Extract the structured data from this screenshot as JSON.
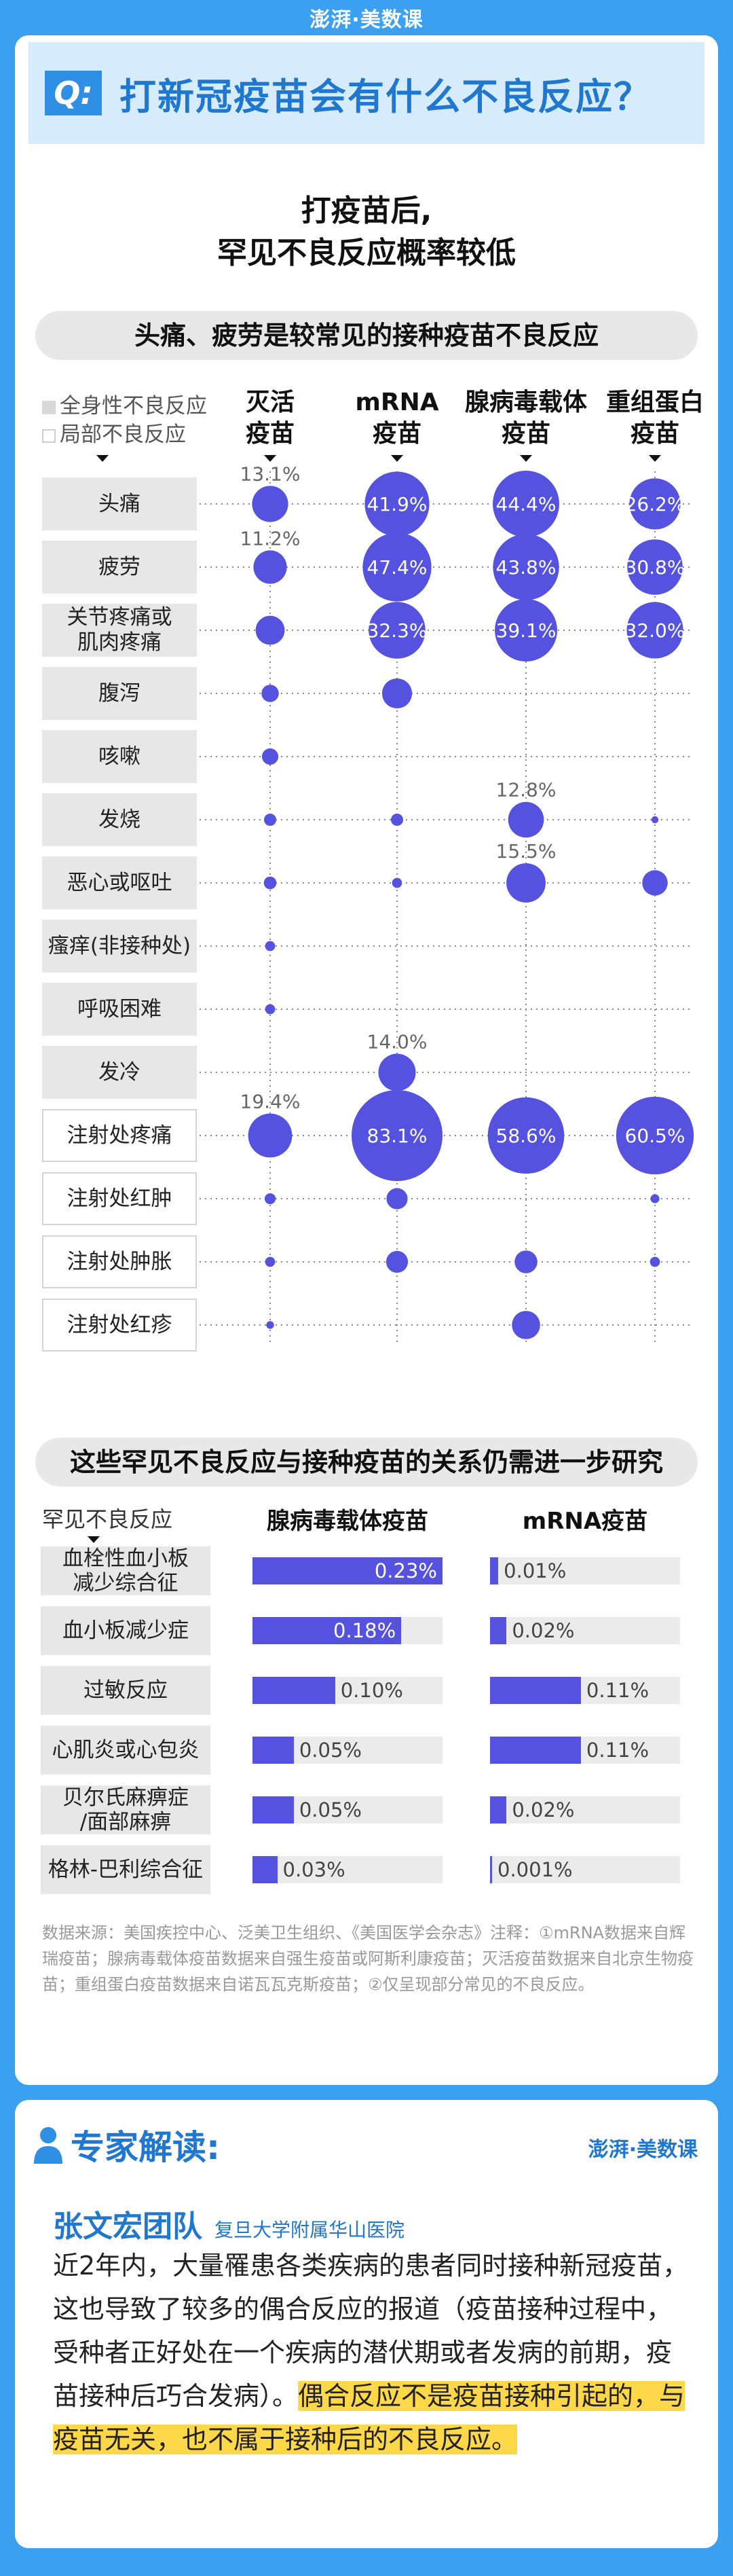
{
  "brand": "澎湃·美数课",
  "q_badge": "Q:",
  "question": "打新冠疫苗会有什么不良反应？",
  "section1_title_line1": "打疫苗后,",
  "section1_title_line2": "罕见不良反应概率较低",
  "banner1": "头痛、疲劳是较常见的接种疫苗不良反应",
  "legend": {
    "systemic": "全身性不良反应",
    "local": "局部不良反应"
  },
  "colors": {
    "bubble": "#5552e0",
    "accent": "#1f77d0",
    "badge": "#2f8fe5",
    "highlight": "#ffd84a",
    "page_bg": "#3ba0f0"
  },
  "chart_data": [
    {
      "type": "scatter",
      "series": [
        {
          "name": "灭活疫苗",
          "label_lines": [
            "灭活",
            "疫苗"
          ]
        },
        {
          "name": "mRNA疫苗",
          "label_lines": [
            "mRNA",
            "疫苗"
          ]
        },
        {
          "name": "腺病毒载体疫苗",
          "label_lines": [
            "腺病毒载体",
            "疫苗"
          ]
        },
        {
          "name": "重组蛋白疫苗",
          "label_lines": [
            "重组蛋白",
            "疫苗"
          ]
        }
      ],
      "categories": [
        {
          "name": "头痛",
          "lines": [
            "头痛"
          ],
          "type": "systemic"
        },
        {
          "name": "疲劳",
          "lines": [
            "疲劳"
          ],
          "type": "systemic"
        },
        {
          "name": "关节疼痛或肌肉疼痛",
          "lines": [
            "关节疼痛或",
            "肌肉疼痛"
          ],
          "type": "systemic"
        },
        {
          "name": "腹泻",
          "lines": [
            "腹泻"
          ],
          "type": "systemic"
        },
        {
          "name": "咳嗽",
          "lines": [
            "咳嗽"
          ],
          "type": "systemic"
        },
        {
          "name": "发烧",
          "lines": [
            "发烧"
          ],
          "type": "systemic"
        },
        {
          "name": "恶心或呕吐",
          "lines": [
            "恶心或呕吐"
          ],
          "type": "systemic"
        },
        {
          "name": "瘙痒(非接种处)",
          "lines": [
            "瘙痒(非接种处)"
          ],
          "type": "systemic"
        },
        {
          "name": "呼吸困难",
          "lines": [
            "呼吸困难"
          ],
          "type": "systemic"
        },
        {
          "name": "发冷",
          "lines": [
            "发冷"
          ],
          "type": "systemic"
        },
        {
          "name": "注射处疼痛",
          "lines": [
            "注射处疼痛"
          ],
          "type": "local"
        },
        {
          "name": "注射处红肿",
          "lines": [
            "注射处红肿"
          ],
          "type": "local"
        },
        {
          "name": "注射处肿胀",
          "lines": [
            "注射处肿胀"
          ],
          "type": "local"
        },
        {
          "name": "注射处红疹",
          "lines": [
            "注射处红疹"
          ],
          "type": "local"
        }
      ],
      "values": [
        [
          13.1,
          41.9,
          44.4,
          26.2
        ],
        [
          11.2,
          47.4,
          43.8,
          30.8
        ],
        [
          8.5,
          32.3,
          39.1,
          32.0
        ],
        [
          3.0,
          9.0,
          null,
          null
        ],
        [
          2.7,
          null,
          null,
          null
        ],
        [
          1.5,
          1.5,
          12.8,
          0.5
        ],
        [
          1.6,
          1.0,
          15.5,
          6.5
        ],
        [
          1.0,
          null,
          null,
          null
        ],
        [
          1.0,
          null,
          null,
          null
        ],
        [
          null,
          14.0,
          null,
          null
        ],
        [
          19.4,
          83.1,
          58.6,
          60.5
        ],
        [
          1.2,
          4.5,
          null,
          0.8
        ],
        [
          1.0,
          4.8,
          5.2,
          1.0
        ],
        [
          0.6,
          null,
          8.0,
          null
        ]
      ],
      "labels": [
        [
          "13.1%",
          "41.9%",
          "44.4%",
          "26.2%"
        ],
        [
          "11.2%",
          "47.4%",
          "43.8%",
          "30.8%"
        ],
        [
          null,
          "32.3%",
          "39.1%",
          "32.0%"
        ],
        [
          null,
          null,
          null,
          null
        ],
        [
          null,
          null,
          null,
          null
        ],
        [
          null,
          null,
          "12.8%",
          null
        ],
        [
          null,
          null,
          "15.5%",
          null
        ],
        [
          null,
          null,
          null,
          null
        ],
        [
          null,
          null,
          null,
          null
        ],
        [
          null,
          "14.0%",
          null,
          null
        ],
        [
          "19.4%",
          "83.1%",
          "58.6%",
          "60.5%"
        ],
        [
          null,
          null,
          null,
          null
        ],
        [
          null,
          null,
          null,
          null
        ],
        [
          null,
          null,
          null,
          null
        ]
      ],
      "grid": "dotted"
    },
    {
      "type": "bar",
      "title": "这些罕见不良反应与接种疫苗的关系仍需进一步研究",
      "row_header": "罕见不良反应",
      "categories": [
        {
          "name": "血栓性血小板减少综合征",
          "lines": [
            "血栓性血小板",
            "减少综合征"
          ]
        },
        {
          "name": "血小板减少症",
          "lines": [
            "血小板减少症"
          ]
        },
        {
          "name": "过敏反应",
          "lines": [
            "过敏反应"
          ]
        },
        {
          "name": "心肌炎或心包炎",
          "lines": [
            "心肌炎或心包炎"
          ]
        },
        {
          "name": "贝尔氏麻痹症/面部麻痹",
          "lines": [
            "贝尔氏麻痹症",
            "/面部麻痹"
          ]
        },
        {
          "name": "格林-巴利综合征",
          "lines": [
            "格林-巴利综合征"
          ]
        }
      ],
      "series": [
        {
          "name": "腺病毒载体疫苗",
          "values": [
            0.23,
            0.18,
            0.1,
            0.05,
            0.05,
            0.03
          ],
          "labels": [
            "0.23%",
            "0.18%",
            "0.10%",
            "0.05%",
            "0.05%",
            "0.03%"
          ],
          "max": 0.23
        },
        {
          "name": "mRNA疫苗",
          "values": [
            0.01,
            0.02,
            0.11,
            0.11,
            0.02,
            0.001
          ],
          "labels": [
            "0.01%",
            "0.02%",
            "0.11%",
            "0.11%",
            "0.02%",
            "0.001%"
          ],
          "max": 0.23
        }
      ]
    }
  ],
  "notes": "数据来源：美国疾控中心、泛美卫生组织、《美国医学会杂志》注释：①mRNA数据来自辉瑞疫苗；腺病毒载体疫苗数据来自强生疫苗或阿斯利康疫苗；灭活疫苗数据来自北京生物疫苗；重组蛋白疫苗数据来自诺瓦瓦克斯疫苗；②仅呈现部分常见的不良反应。",
  "expert": {
    "title": "专家解读:",
    "logo": "澎湃·美数课",
    "team": "张文宏团队",
    "institution": "复旦大学附属华山医院",
    "text_normal": "近2年内，大量罹患各类疾病的患者同时接种新冠疫苗，这也导致了较多的偶合反应的报道（疫苗接种过程中，受种者正好处在一个疾病的潜伏期或者发病的前期，疫苗接种后巧合发病）。",
    "text_highlight": "偶合反应不是疫苗接种引起的，与疫苗无关，也不属于接种后的不良反应。"
  }
}
